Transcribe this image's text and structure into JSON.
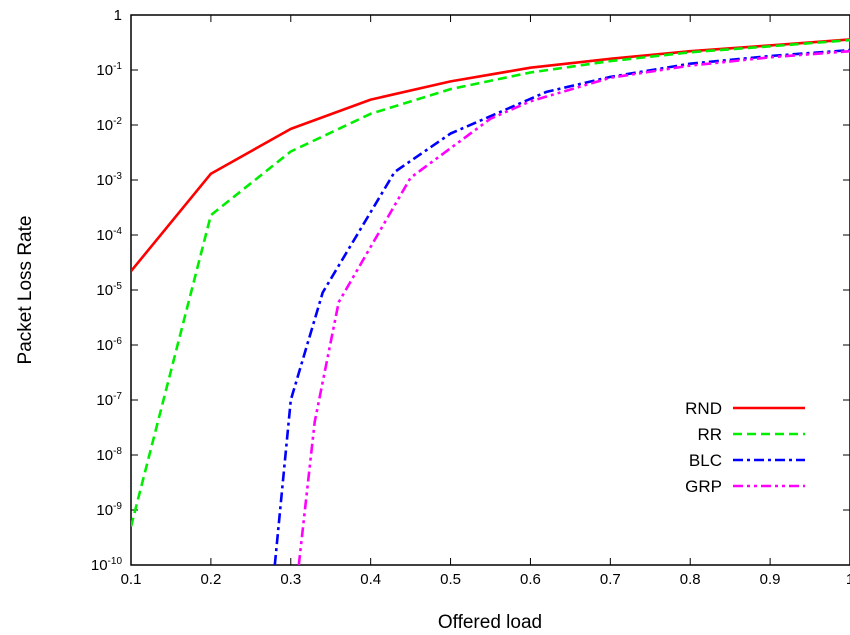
{
  "chart_data": {
    "type": "line",
    "xlabel": "Offered load",
    "ylabel": "Packet Loss Rate",
    "xlim": [
      0.1,
      1.0
    ],
    "ylim": [
      1e-10,
      1
    ],
    "y_scale": "log",
    "grid": false,
    "legend_position": "bottom-right",
    "x_ticks": [
      "0.1",
      "0.2",
      "0.3",
      "0.4",
      "0.5",
      "0.6",
      "0.7",
      "0.8",
      "0.9",
      "1"
    ],
    "y_ticks": [
      {
        "base": "10",
        "exp": "-10"
      },
      {
        "base": "10",
        "exp": "-9"
      },
      {
        "base": "10",
        "exp": "-8"
      },
      {
        "base": "10",
        "exp": "-7"
      },
      {
        "base": "10",
        "exp": "-6"
      },
      {
        "base": "10",
        "exp": "-5"
      },
      {
        "base": "10",
        "exp": "-4"
      },
      {
        "base": "10",
        "exp": "-3"
      },
      {
        "base": "10",
        "exp": "-2"
      },
      {
        "base": "10",
        "exp": "-1"
      },
      {
        "base": "1",
        "exp": ""
      }
    ],
    "series": [
      {
        "name": "RND",
        "color": "#ff0000",
        "dash": "solid",
        "x": [
          0.1,
          0.2,
          0.3,
          0.4,
          0.5,
          0.6,
          0.7,
          0.8,
          0.9,
          1.0
        ],
        "y": [
          2.2e-05,
          0.0013,
          0.0085,
          0.029,
          0.062,
          0.11,
          0.16,
          0.22,
          0.28,
          0.36
        ]
      },
      {
        "name": "RR",
        "color": "#00ee00",
        "dash": "dashed",
        "x": [
          0.1,
          0.2,
          0.3,
          0.4,
          0.5,
          0.6,
          0.7,
          0.8,
          0.9,
          1.0
        ],
        "y": [
          5e-10,
          0.00023,
          0.0033,
          0.016,
          0.045,
          0.09,
          0.145,
          0.21,
          0.27,
          0.35
        ]
      },
      {
        "name": "BLC",
        "color": "#0000ff",
        "dash": "dash-dot",
        "x": [
          0.28,
          0.3,
          0.34,
          0.43,
          0.5,
          0.62,
          0.7,
          0.8,
          0.9,
          1.0
        ],
        "y": [
          1e-10,
          1e-07,
          9e-06,
          0.0014,
          0.007,
          0.04,
          0.075,
          0.13,
          0.18,
          0.23
        ]
      },
      {
        "name": "GRP",
        "color": "#ff00ff",
        "dash": "dash-dot-dot",
        "x": [
          0.31,
          0.33,
          0.36,
          0.45,
          0.55,
          0.6,
          0.7,
          0.8,
          0.9,
          1.0
        ],
        "y": [
          1e-10,
          4e-08,
          6e-06,
          0.0011,
          0.013,
          0.027,
          0.072,
          0.12,
          0.17,
          0.22
        ]
      }
    ]
  }
}
